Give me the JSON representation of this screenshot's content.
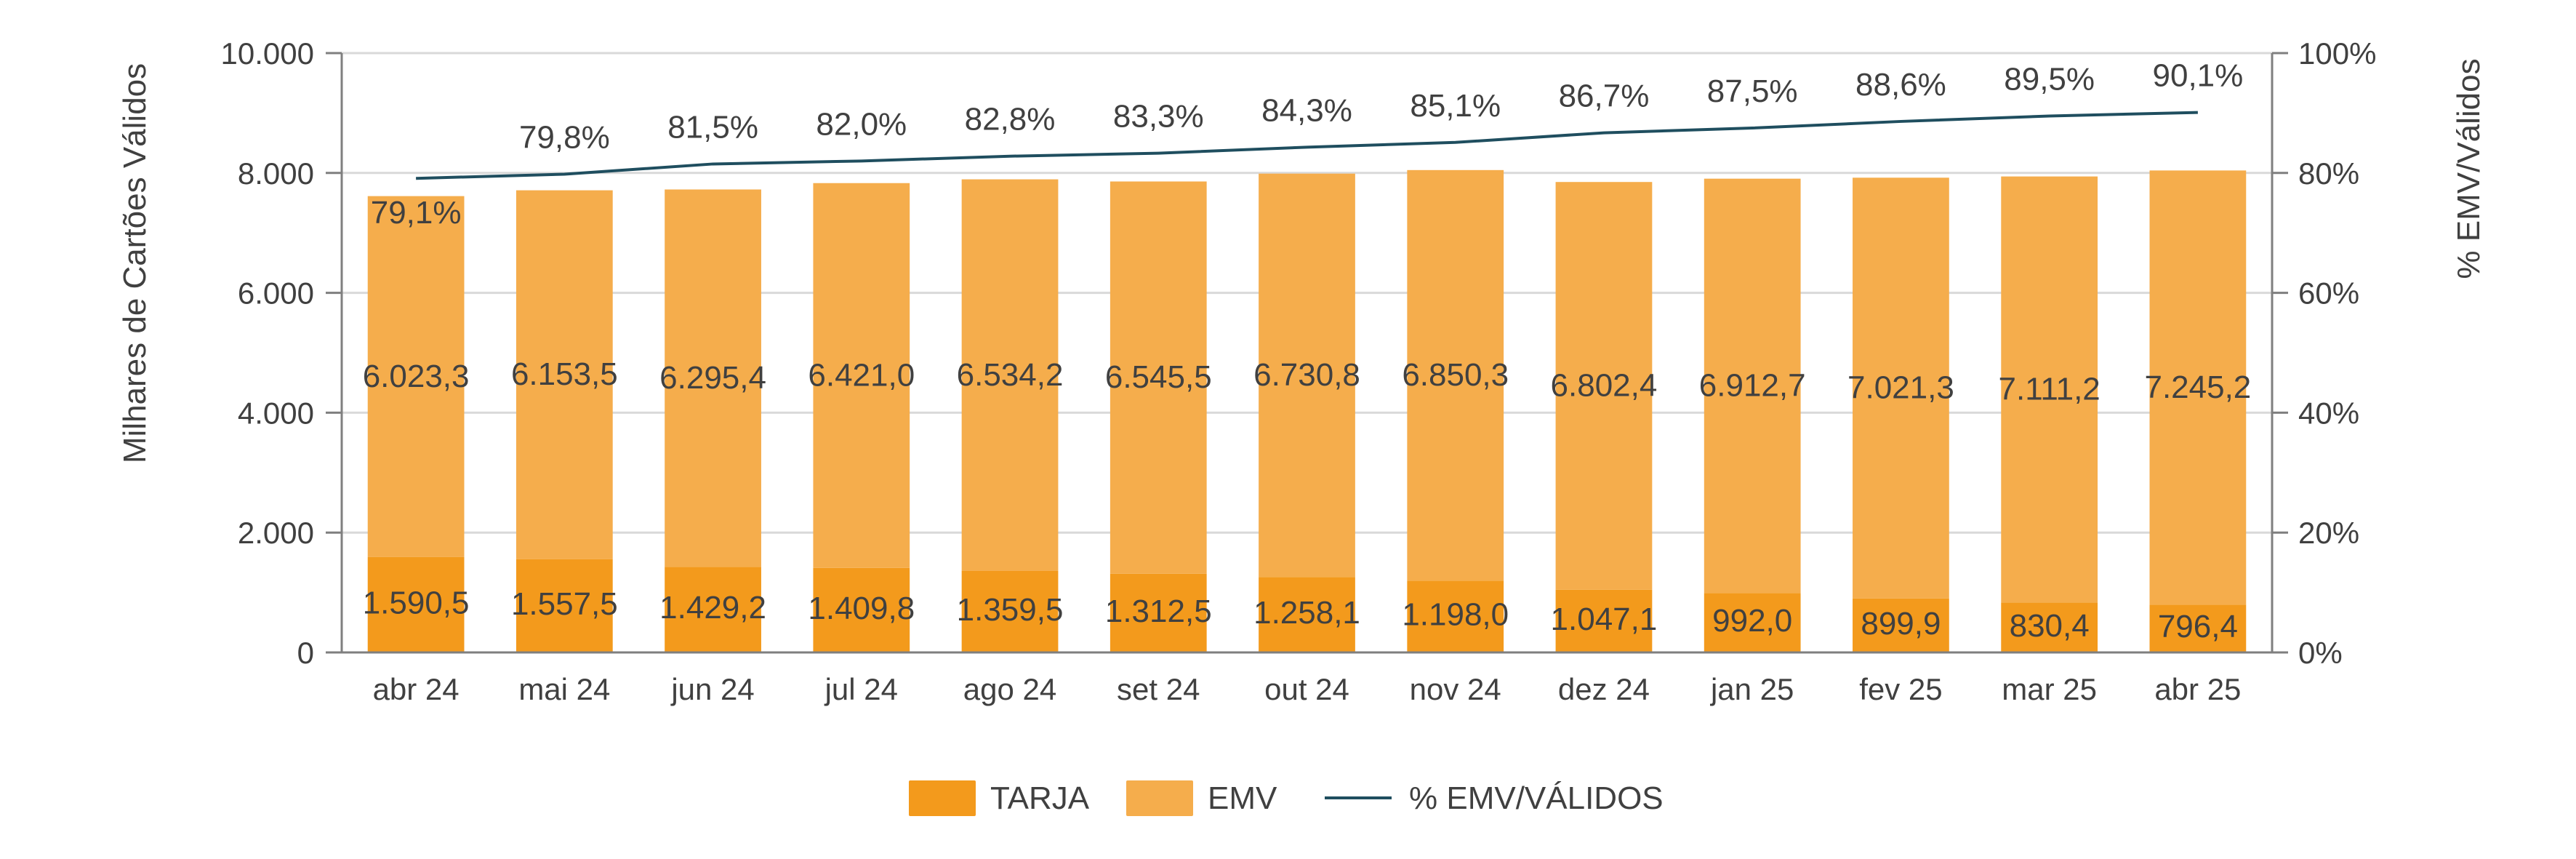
{
  "chart_data": {
    "type": "bar",
    "stacked": true,
    "categories": [
      "abr 24",
      "mai 24",
      "jun 24",
      "jul 24",
      "ago 24",
      "set 24",
      "out 24",
      "nov 24",
      "dez 24",
      "jan 25",
      "fev 25",
      "mar 25",
      "abr 25"
    ],
    "series": [
      {
        "name": "TARJA",
        "type": "bar",
        "color": "#f39a1c",
        "values": [
          1590.5,
          1557.5,
          1429.2,
          1409.8,
          1359.5,
          1312.5,
          1258.1,
          1198.0,
          1047.1,
          992.0,
          899.9,
          830.4,
          796.4
        ],
        "labels": [
          "1.590,5",
          "1.557,5",
          "1.429,2",
          "1.409,8",
          "1.359,5",
          "1.312,5",
          "1.258,1",
          "1.198,0",
          "1.047,1",
          "992,0",
          "899,9",
          "830,4",
          "796,4"
        ]
      },
      {
        "name": "EMV",
        "type": "bar",
        "color": "#f5ad4c",
        "values": [
          6023.3,
          6153.5,
          6295.4,
          6421.0,
          6534.2,
          6545.5,
          6730.8,
          6850.3,
          6802.4,
          6912.7,
          7021.3,
          7111.2,
          7245.2
        ],
        "labels": [
          "6.023,3",
          "6.153,5",
          "6.295,4",
          "6.421,0",
          "6.534,2",
          "6.545,5",
          "6.730,8",
          "6.850,3",
          "6.802,4",
          "6.912,7",
          "7.021,3",
          "7.111,2",
          "7.245,2"
        ]
      },
      {
        "name": "% EMV/VÁLIDOS",
        "type": "line",
        "axis": "right",
        "color": "#1f4e5f",
        "values": [
          79.1,
          79.8,
          81.5,
          82.0,
          82.8,
          83.3,
          84.3,
          85.1,
          86.7,
          87.5,
          88.6,
          89.5,
          90.1
        ],
        "labels": [
          "79,1%",
          "79,8%",
          "81,5%",
          "82,0%",
          "82,8%",
          "83,3%",
          "84,3%",
          "85,1%",
          "86,7%",
          "87,5%",
          "88,6%",
          "89,5%",
          "90,1%"
        ]
      }
    ],
    "ylabel": "Milhares de Cartões Válidos",
    "ylim": [
      0,
      10000
    ],
    "yticks": [
      "0",
      "2.000",
      "4.000",
      "6.000",
      "8.000",
      "10.000"
    ],
    "y2label": "% EMV/Válidos",
    "y2lim": [
      0,
      100
    ],
    "y2ticks": [
      "0%",
      "20%",
      "40%",
      "60%",
      "80%",
      "100%"
    ],
    "grid": true,
    "legend_position": "bottom",
    "gridColor": "#d9d9d9",
    "axisColor": "#7f7f7f",
    "textColor": "#404040"
  }
}
